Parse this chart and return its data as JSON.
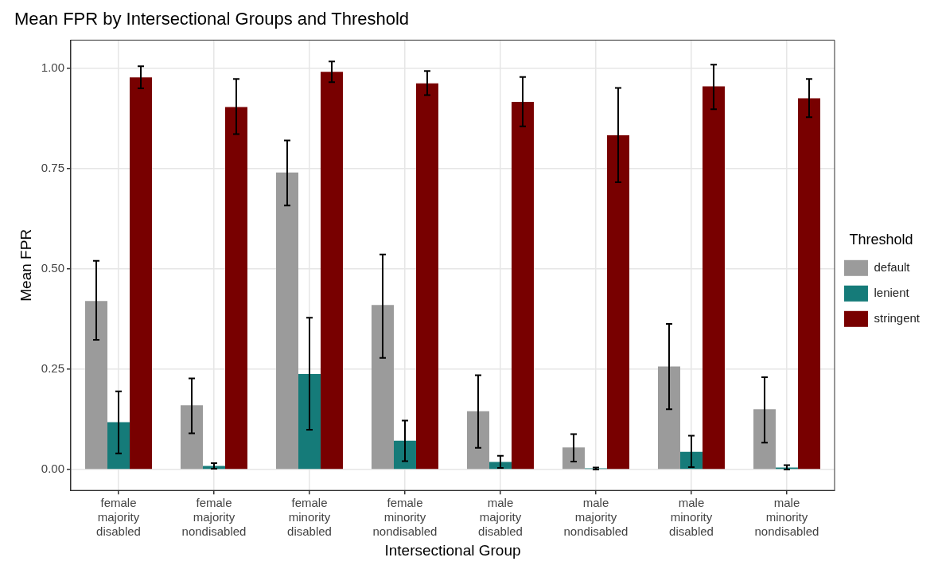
{
  "chart_data": {
    "type": "bar",
    "title": "Mean FPR by Intersectional Groups and Threshold",
    "xlabel": "Intersectional Group",
    "ylabel": "Mean FPR",
    "legend_title": "Threshold",
    "categories": [
      "female majority disabled",
      "female majority nondisabled",
      "female minority disabled",
      "female minority nondisabled",
      "male majority disabled",
      "male majority nondisabled",
      "male minority disabled",
      "male minority nondisabled"
    ],
    "series": [
      {
        "name": "default",
        "color": "#9b9b9b",
        "values": [
          0.42,
          0.16,
          0.74,
          0.41,
          0.145,
          0.055,
          0.257,
          0.15
        ],
        "errors": [
          [
            0.323,
            0.52
          ],
          [
            0.09,
            0.227
          ],
          [
            0.658,
            0.82
          ],
          [
            0.278,
            0.536
          ],
          [
            0.054,
            0.235
          ],
          [
            0.02,
            0.088
          ],
          [
            0.15,
            0.363
          ],
          [
            0.067,
            0.23
          ]
        ]
      },
      {
        "name": "lenient",
        "color": "#157b79",
        "values": [
          0.118,
          0.009,
          0.238,
          0.072,
          0.019,
          0.003,
          0.044,
          0.005
        ],
        "errors": [
          [
            0.04,
            0.195
          ],
          [
            0.002,
            0.016
          ],
          [
            0.099,
            0.378
          ],
          [
            0.021,
            0.122
          ],
          [
            0.004,
            0.034
          ],
          [
            0,
            0.005
          ],
          [
            0.006,
            0.084
          ],
          [
            0,
            0.011
          ]
        ]
      },
      {
        "name": "stringent",
        "color": "#780000",
        "values": [
          0.977,
          0.903,
          0.991,
          0.962,
          0.916,
          0.833,
          0.955,
          0.925
        ],
        "errors": [
          [
            0.95,
            1.005
          ],
          [
            0.836,
            0.973
          ],
          [
            0.965,
            1.017
          ],
          [
            0.933,
            0.993
          ],
          [
            0.855,
            0.978
          ],
          [
            0.716,
            0.951
          ],
          [
            0.898,
            1.009
          ],
          [
            0.878,
            0.973
          ]
        ]
      }
    ],
    "ylim": [
      -0.052,
      1.07
    ],
    "yticks": [
      {
        "value": 0,
        "label": "0.00"
      },
      {
        "value": 0.25,
        "label": "0.25"
      },
      {
        "value": 0.5,
        "label": "0.50"
      },
      {
        "value": 0.75,
        "label": "0.75"
      },
      {
        "value": 1,
        "label": "1.00"
      }
    ],
    "grid": true,
    "legend": "right"
  }
}
